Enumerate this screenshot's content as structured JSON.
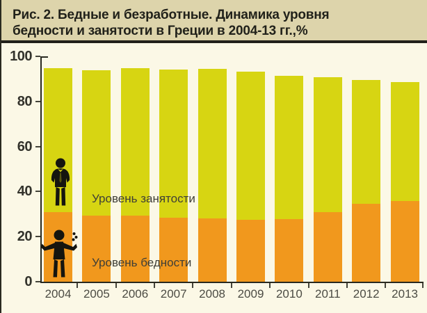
{
  "header": {
    "title_lines": [
      "Рис. 2. Бедные и безработные. Динамика уровня",
      "бедности и занятости в Греции в 2004-13 гг.,%"
    ]
  },
  "chart_data": {
    "type": "bar",
    "stacked": true,
    "title": "Рис. 2. Бедные и безработные. Динамика уровня бедности и занятости в Греции в 2004-13 гг.,%",
    "categories": [
      "2004",
      "2005",
      "2006",
      "2007",
      "2008",
      "2009",
      "2010",
      "2011",
      "2012",
      "2013"
    ],
    "series": [
      {
        "name": "Уровень бедности",
        "role": "poverty",
        "color": "#f1981d",
        "values": [
          30.9,
          29.4,
          29.3,
          28.3,
          28.1,
          27.6,
          27.7,
          31.0,
          34.6,
          35.7
        ]
      },
      {
        "name": "Уровень занятости",
        "role": "employment",
        "color": "#d7d512",
        "values": [
          64.0,
          64.4,
          65.6,
          65.8,
          66.3,
          65.6,
          63.8,
          59.6,
          55.0,
          52.9
        ]
      }
    ],
    "xlabel": "",
    "ylabel": "",
    "ylim": [
      0,
      100
    ],
    "yticks": [
      0,
      20,
      40,
      60,
      80,
      100
    ],
    "grid": false,
    "legend_position": "labels-inside-bars",
    "icons": [
      {
        "name": "employed-person-icon",
        "meaning": "занятый (работающий) человек"
      },
      {
        "name": "poor-person-icon",
        "meaning": "бедный (просящий) человек"
      }
    ]
  },
  "colors": {
    "title_band_bg": "#ddd4ab",
    "chart_bg": "#fbf8e6",
    "employment_bar": "#d7d512",
    "poverty_bar": "#f1981d",
    "rule": "#21211a",
    "axis": "#29291f",
    "y_label_text": "#33332c",
    "x_label_text": "#4c4c44",
    "series_label_text": "#3e3e37",
    "pictogram": "#15150f"
  }
}
